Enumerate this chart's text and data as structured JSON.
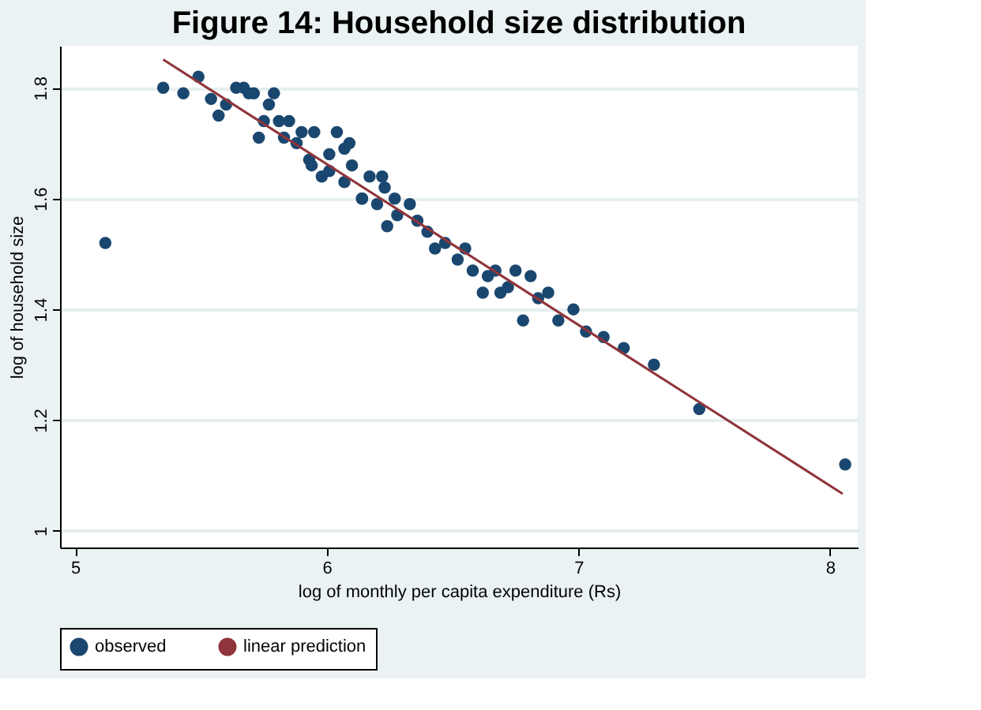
{
  "chart_data": {
    "type": "scatter",
    "title": "Figure 14: Household size distribution",
    "xlabel": "log of monthly per capita expenditure (Rs)",
    "ylabel": "log of household size",
    "xlim": [
      4.94,
      8.11
    ],
    "ylim": [
      0.97,
      1.876
    ],
    "xticks": [
      5,
      6,
      7,
      8
    ],
    "yticks": [
      1,
      1.2,
      1.4,
      1.6,
      1.8
    ],
    "grid": "y",
    "legend": "bottom",
    "series": [
      {
        "name": "observed",
        "marker": "circle",
        "color": "#1a476f",
        "x": [
          5.12,
          5.35,
          5.43,
          5.49,
          5.54,
          5.57,
          5.6,
          5.64,
          5.67,
          5.69,
          5.71,
          5.77,
          5.79,
          5.73,
          5.75,
          5.81,
          5.85,
          5.83,
          5.9,
          5.95,
          6.04,
          6.09,
          6.1,
          5.98,
          6.01,
          5.93,
          6.14,
          6.07,
          6.01,
          5.88,
          6.07,
          5.94,
          6.17,
          6.22,
          6.23,
          6.14,
          6.2,
          6.27,
          6.28,
          6.24,
          6.33,
          6.36,
          6.4,
          6.43,
          6.47,
          6.52,
          6.55,
          6.58,
          6.62,
          6.64,
          6.69,
          6.67,
          6.75,
          6.81,
          6.78,
          6.88,
          6.72,
          6.84,
          6.98,
          6.92,
          7.03,
          7.1,
          7.18,
          7.3,
          7.48,
          8.06
        ],
        "values": [
          1.52,
          1.8,
          1.79,
          1.82,
          1.78,
          1.75,
          1.77,
          1.8,
          1.8,
          1.79,
          1.79,
          1.77,
          1.79,
          1.71,
          1.74,
          1.74,
          1.74,
          1.71,
          1.72,
          1.72,
          1.72,
          1.7,
          1.66,
          1.64,
          1.68,
          1.67,
          1.6,
          1.63,
          1.65,
          1.7,
          1.69,
          1.66,
          1.64,
          1.64,
          1.62,
          1.6,
          1.59,
          1.6,
          1.57,
          1.55,
          1.59,
          1.56,
          1.54,
          1.51,
          1.52,
          1.49,
          1.51,
          1.47,
          1.43,
          1.46,
          1.43,
          1.47,
          1.47,
          1.46,
          1.38,
          1.43,
          1.44,
          1.42,
          1.4,
          1.38,
          1.36,
          1.35,
          1.33,
          1.3,
          1.22,
          1.12
        ]
      },
      {
        "name": "linear prediction",
        "type": "line",
        "marker": "none",
        "color": "#90353b",
        "line_style": "solid",
        "x": [
          5.35,
          8.05
        ],
        "values": [
          1.851,
          1.067
        ]
      }
    ]
  }
}
